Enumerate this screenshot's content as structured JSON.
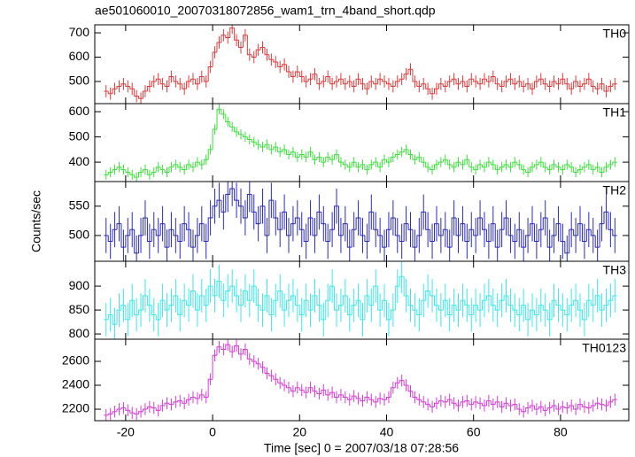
{
  "title": "ae501060010_20070318072856_wam1_trn_4band_short.qdp",
  "ylabel": "Counts/sec",
  "xlabel": "Time [sec] 0 = 2007/03/18 07:28:56",
  "xlim": [
    -27.1,
    95.7
  ],
  "xticks": [
    -20,
    0,
    20,
    40,
    60,
    80
  ],
  "x": [
    -24.5,
    -23.5,
    -22.5,
    -21.5,
    -20.5,
    -19.5,
    -18.5,
    -17.5,
    -16.5,
    -15.5,
    -14.5,
    -13.5,
    -12.5,
    -11.5,
    -10.5,
    -9.5,
    -8.5,
    -7.5,
    -6.5,
    -5.5,
    -4.5,
    -3.5,
    -2.5,
    -1.5,
    -0.5,
    0.5,
    1.5,
    2.5,
    3.5,
    4.5,
    5.5,
    6.5,
    7.5,
    8.5,
    9.5,
    10.5,
    11.5,
    12.5,
    13.5,
    14.5,
    15.5,
    16.5,
    17.5,
    18.5,
    19.5,
    20.5,
    21.5,
    22.5,
    23.5,
    24.5,
    25.5,
    26.5,
    27.5,
    28.5,
    29.5,
    30.5,
    31.5,
    32.5,
    33.5,
    34.5,
    35.5,
    36.5,
    37.5,
    38.5,
    39.5,
    40.5,
    41.5,
    42.5,
    43.5,
    44.5,
    45.5,
    46.5,
    47.5,
    48.5,
    49.5,
    50.5,
    51.5,
    52.5,
    53.5,
    54.5,
    55.5,
    56.5,
    57.5,
    58.5,
    59.5,
    60.5,
    61.5,
    62.5,
    63.5,
    64.5,
    65.5,
    66.5,
    67.5,
    68.5,
    69.5,
    70.5,
    71.5,
    72.5,
    73.5,
    74.5,
    75.5,
    76.5,
    77.5,
    78.5,
    79.5,
    80.5,
    81.5,
    82.5,
    83.5,
    84.5,
    85.5,
    86.5,
    87.5,
    88.5,
    89.5,
    90.5,
    91.5,
    92.5
  ],
  "chart_data": [
    {
      "type": "step",
      "label": "TH0",
      "ylim": [
        409,
        733
      ],
      "yticks": [
        500,
        600,
        700
      ],
      "series": [
        {
          "name": "TH0",
          "color": "#e23a3a",
          "error": 25,
          "values": [
            460,
            450,
            470,
            480,
            490,
            480,
            470,
            440,
            430,
            460,
            480,
            500,
            510,
            490,
            480,
            520,
            500,
            490,
            470,
            500,
            510,
            490,
            520,
            500,
            560,
            620,
            660,
            690,
            680,
            720,
            670,
            640,
            690,
            610,
            600,
            630,
            640,
            610,
            590,
            580,
            560,
            570,
            540,
            520,
            540,
            520,
            500,
            510,
            530,
            490,
            500,
            520,
            490,
            500,
            510,
            490,
            500,
            480,
            510,
            490,
            470,
            500,
            490,
            510,
            500,
            490,
            480,
            500,
            510,
            530,
            550,
            500,
            480,
            490,
            470,
            450,
            470,
            490,
            480,
            500,
            510,
            490,
            500,
            480,
            510,
            500,
            490,
            510,
            500,
            520,
            490,
            480,
            500,
            510,
            490,
            500,
            480,
            490,
            470,
            500,
            510,
            490,
            480,
            500,
            490,
            510,
            490,
            470,
            500,
            480,
            490,
            510,
            480,
            470,
            490,
            460,
            480,
            490
          ]
        }
      ]
    },
    {
      "type": "step",
      "label": "TH1",
      "ylim": [
        323,
        632
      ],
      "yticks": [
        400,
        500,
        600
      ],
      "series": [
        {
          "name": "TH1",
          "color": "#3ae23a",
          "error": 20,
          "values": [
            350,
            360,
            370,
            380,
            370,
            360,
            350,
            340,
            360,
            370,
            350,
            360,
            380,
            370,
            360,
            380,
            390,
            380,
            370,
            390,
            380,
            400,
            390,
            410,
            450,
            530,
            610,
            590,
            560,
            540,
            520,
            510,
            500,
            490,
            480,
            470,
            460,
            470,
            450,
            460,
            440,
            450,
            430,
            440,
            420,
            430,
            420,
            440,
            410,
            420,
            400,
            420,
            410,
            430,
            400,
            390,
            380,
            400,
            380,
            390,
            370,
            390,
            400,
            380,
            410,
            400,
            420,
            430,
            440,
            450,
            430,
            410,
            420,
            400,
            380,
            370,
            390,
            400,
            410,
            390,
            380,
            400,
            390,
            410,
            380,
            370,
            390,
            380,
            400,
            390,
            370,
            380,
            390,
            380,
            400,
            390,
            370,
            360,
            380,
            390,
            400,
            380,
            370,
            390,
            380,
            370,
            390,
            380,
            360,
            370,
            380,
            390,
            370,
            380,
            360,
            380,
            390,
            400
          ]
        }
      ]
    },
    {
      "type": "step",
      "label": "TH2",
      "ylim": [
        456,
        592
      ],
      "yticks": [
        500,
        550
      ],
      "series": [
        {
          "name": "TH2",
          "color": "#2a2ac4",
          "error": 30,
          "values": [
            500,
            490,
            510,
            520,
            480,
            500,
            510,
            470,
            500,
            530,
            490,
            510,
            500,
            520,
            480,
            510,
            500,
            490,
            520,
            510,
            480,
            500,
            520,
            490,
            530,
            550,
            560,
            540,
            570,
            580,
            560,
            550,
            530,
            570,
            540,
            520,
            550,
            500,
            560,
            530,
            510,
            540,
            500,
            520,
            530,
            510,
            490,
            530,
            500,
            540,
            520,
            490,
            510,
            550,
            500,
            520,
            480,
            510,
            530,
            500,
            490,
            540,
            510,
            500,
            480,
            510,
            530,
            500,
            490,
            520,
            510,
            480,
            500,
            540,
            510,
            490,
            520,
            500,
            510,
            480,
            530,
            500,
            520,
            490,
            510,
            500,
            530,
            510,
            490,
            520,
            480,
            510,
            530,
            500,
            490,
            510,
            480,
            500,
            520,
            490,
            510,
            530,
            480,
            500,
            520,
            490,
            470,
            510,
            500,
            520,
            490,
            510,
            500,
            480,
            520,
            540,
            510,
            500
          ]
        }
      ]
    },
    {
      "type": "step",
      "label": "TH3",
      "ylim": [
        789,
        952
      ],
      "yticks": [
        800,
        850,
        900
      ],
      "series": [
        {
          "name": "TH3",
          "color": "#3ae8e8",
          "error": 35,
          "values": [
            830,
            840,
            820,
            850,
            860,
            830,
            870,
            840,
            850,
            880,
            860,
            840,
            830,
            870,
            850,
            860,
            880,
            840,
            870,
            860,
            890,
            850,
            880,
            860,
            900,
            880,
            910,
            870,
            890,
            900,
            880,
            860,
            890,
            870,
            900,
            860,
            850,
            880,
            840,
            870,
            890,
            850,
            870,
            880,
            860,
            840,
            870,
            850,
            880,
            860,
            830,
            870,
            900,
            850,
            860,
            880,
            840,
            860,
            870,
            830,
            880,
            860,
            900,
            850,
            870,
            830,
            850,
            900,
            920,
            880,
            860,
            850,
            840,
            870,
            890,
            880,
            860,
            850,
            870,
            840,
            860,
            850,
            870,
            860,
            840,
            860,
            850,
            870,
            880,
            860,
            850,
            870,
            880,
            860,
            850,
            840,
            860,
            830,
            850,
            840,
            860,
            850,
            830,
            870,
            860,
            850,
            840,
            860,
            870,
            850,
            830,
            870,
            860,
            880,
            850,
            860,
            870,
            880
          ]
        }
      ]
    },
    {
      "type": "step",
      "label": "TH0123",
      "ylim": [
        2104,
        2785
      ],
      "yticks": [
        2200,
        2400,
        2600
      ],
      "series": [
        {
          "name": "TH0123",
          "color": "#d83ad8",
          "error": 50,
          "values": [
            2150,
            2160,
            2180,
            2200,
            2210,
            2190,
            2170,
            2160,
            2180,
            2200,
            2220,
            2210,
            2190,
            2230,
            2250,
            2240,
            2260,
            2270,
            2250,
            2280,
            2300,
            2290,
            2320,
            2300,
            2450,
            2650,
            2720,
            2700,
            2740,
            2680,
            2730,
            2660,
            2700,
            2620,
            2600,
            2580,
            2550,
            2500,
            2480,
            2450,
            2420,
            2400,
            2380,
            2350,
            2380,
            2360,
            2340,
            2380,
            2350,
            2330,
            2360,
            2320,
            2340,
            2300,
            2320,
            2300,
            2280,
            2310,
            2290,
            2270,
            2300,
            2280,
            2260,
            2290,
            2280,
            2300,
            2380,
            2420,
            2440,
            2400,
            2350,
            2300,
            2280,
            2260,
            2240,
            2220,
            2250,
            2270,
            2260,
            2280,
            2250,
            2230,
            2260,
            2270,
            2240,
            2260,
            2250,
            2230,
            2270,
            2240,
            2260,
            2220,
            2250,
            2230,
            2240,
            2200,
            2180,
            2210,
            2230,
            2200,
            2220,
            2190,
            2210,
            2230,
            2200,
            2220,
            2210,
            2230,
            2200,
            2240,
            2220,
            2210,
            2230,
            2250,
            2240,
            2230,
            2260,
            2280
          ]
        }
      ]
    }
  ]
}
